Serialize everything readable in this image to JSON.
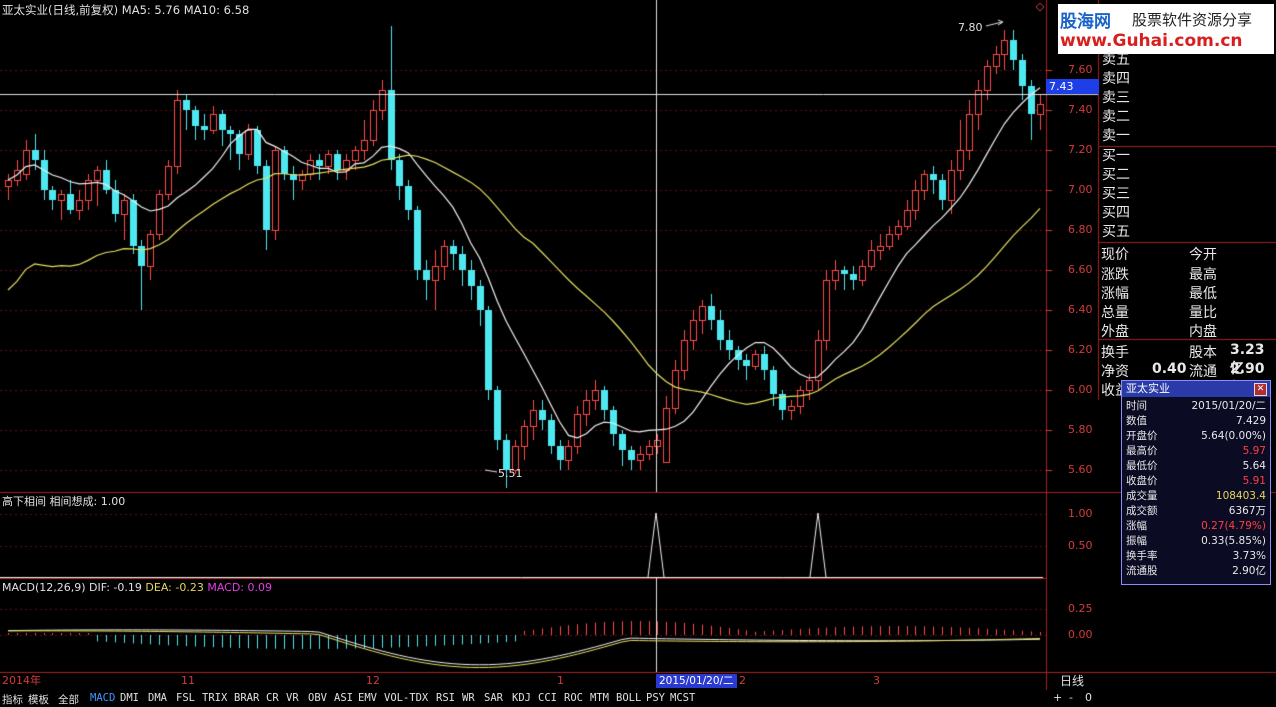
{
  "window": {
    "title": "亚太实业(日线,前复权)",
    "ma5_label": "MA5: 5.76",
    "ma10_label": "MA10: 6.58"
  },
  "brand": {
    "name": "股海网",
    "tagline": "股票软件资源分享",
    "url": "www.Guhai.com.cn"
  },
  "price_axis": {
    "labels": [
      "7.60",
      "7.40",
      "7.20",
      "7.00",
      "6.80",
      "6.60",
      "6.40",
      "6.20",
      "6.00",
      "5.80",
      "5.60"
    ],
    "current_price": "7.43"
  },
  "annotations": {
    "high": "7.80",
    "low": "5.51"
  },
  "indicator1": {
    "title": "高下相间  相间想成: 1.00",
    "axis": [
      "1.00",
      "0.50"
    ]
  },
  "macd": {
    "title": "MACD(12,26,9)",
    "dif": "DIF: -0.19",
    "dea": "DEA: -0.23",
    "macd": "MACD: 0.09",
    "axis": [
      "0.25",
      "0.00"
    ]
  },
  "time_axis": {
    "labels": [
      {
        "text": "2014年"
      },
      {
        "text": "11"
      },
      {
        "text": "12"
      },
      {
        "text": "1"
      },
      {
        "text": "2"
      },
      {
        "text": "3"
      }
    ],
    "cursor_date": "2015/01/20/二",
    "period": "日线"
  },
  "order_book": {
    "sell": [
      "卖五",
      "卖四",
      "卖三",
      "卖二",
      "卖一"
    ],
    "buy": [
      "买一",
      "买二",
      "买三",
      "买四",
      "买五"
    ]
  },
  "quote": {
    "left": [
      "现价",
      "涨跌",
      "涨幅",
      "总量",
      "外盘"
    ],
    "right": [
      "今开",
      "最高",
      "最低",
      "量比",
      "内盘"
    ],
    "turnover_label": "换手",
    "equity_label": "股本",
    "equity_value": "3.23亿",
    "net_label": "净资",
    "net_value": "0.40",
    "float_label": "流通",
    "float_value": "2.90亿",
    "income_label": "收益"
  },
  "popup": {
    "title": "亚太实业",
    "rows": [
      {
        "k": "时间",
        "v": "2015/01/20/二",
        "color": "#e8e8e8"
      },
      {
        "k": "数值",
        "v": "7.429",
        "color": "#e8e8e8"
      },
      {
        "k": "开盘价",
        "v": "5.64(0.00%)",
        "color": "#e8e8e8"
      },
      {
        "k": "最高价",
        "v": "5.97",
        "color": "#ff4040"
      },
      {
        "k": "最低价",
        "v": "5.64",
        "color": "#e8e8e8"
      },
      {
        "k": "收盘价",
        "v": "5.91",
        "color": "#ff4040"
      },
      {
        "k": "成交量",
        "v": "108403.4",
        "color": "#e6d85c"
      },
      {
        "k": "成交额",
        "v": "6367万",
        "color": "#e8e8e8"
      },
      {
        "k": "涨幅",
        "v": "0.27(4.79%)",
        "color": "#ff4040"
      },
      {
        "k": "振幅",
        "v": "0.33(5.85%)",
        "color": "#e8e8e8"
      },
      {
        "k": "换手率",
        "v": "3.73%",
        "color": "#e8e8e8"
      },
      {
        "k": "流通股",
        "v": "2.90亿",
        "color": "#e8e8e8"
      }
    ]
  },
  "tabs": [
    "指标",
    "模板",
    "全部",
    "MACD",
    "DMI",
    "DMA",
    "FSL",
    "TRIX",
    "BRAR",
    "CR",
    "VR",
    "OBV",
    "ASI",
    "EMV",
    "VOL-TDX",
    "RSI",
    "WR",
    "SAR",
    "KDJ",
    "CCI",
    "ROC",
    "MTM",
    "BOLL",
    "PSY",
    "MCST"
  ],
  "active_tab": "MACD",
  "nav_buttons": [
    "+",
    "-",
    "0"
  ],
  "chart_data": {
    "type": "candlestick",
    "ylim": [
      5.5,
      7.85
    ],
    "candles": [
      [
        7.02,
        7.05,
        6.95,
        7.08
      ],
      [
        7.05,
        7.1,
        7.02,
        7.15
      ],
      [
        7.08,
        7.2,
        7.05,
        7.25
      ],
      [
        7.2,
        7.15,
        7.1,
        7.28
      ],
      [
        7.15,
        7.0,
        6.95,
        7.2
      ],
      [
        7.0,
        6.95,
        6.9,
        7.02
      ],
      [
        6.95,
        6.98,
        6.85,
        7.0
      ],
      [
        6.98,
        6.9,
        6.88,
        7.05
      ],
      [
        6.9,
        6.95,
        6.85,
        7.0
      ],
      [
        6.95,
        7.05,
        6.9,
        7.08
      ],
      [
        7.05,
        7.1,
        6.92,
        7.12
      ],
      [
        7.1,
        7.0,
        6.98,
        7.15
      ],
      [
        7.0,
        6.88,
        6.84,
        7.05
      ],
      [
        6.88,
        6.95,
        6.75,
        6.98
      ],
      [
        6.95,
        6.72,
        6.68,
        6.98
      ],
      [
        6.72,
        6.62,
        6.4,
        6.75
      ],
      [
        6.62,
        6.78,
        6.55,
        6.8
      ],
      [
        6.78,
        6.98,
        6.75,
        7.0
      ],
      [
        6.98,
        7.12,
        6.95,
        7.15
      ],
      [
        7.12,
        7.45,
        7.08,
        7.5
      ],
      [
        7.45,
        7.4,
        7.3,
        7.48
      ],
      [
        7.4,
        7.32,
        7.25,
        7.42
      ],
      [
        7.32,
        7.3,
        7.25,
        7.38
      ],
      [
        7.3,
        7.38,
        7.28,
        7.42
      ],
      [
        7.38,
        7.3,
        7.22,
        7.4
      ],
      [
        7.3,
        7.28,
        7.15,
        7.32
      ],
      [
        7.28,
        7.18,
        7.1,
        7.3
      ],
      [
        7.18,
        7.3,
        7.15,
        7.33
      ],
      [
        7.3,
        7.12,
        7.08,
        7.32
      ],
      [
        7.12,
        6.8,
        6.7,
        7.15
      ],
      [
        6.8,
        7.2,
        6.75,
        7.22
      ],
      [
        7.2,
        7.08,
        7.05,
        7.22
      ],
      [
        7.08,
        7.05,
        6.95,
        7.12
      ],
      [
        7.05,
        7.08,
        7.0,
        7.1
      ],
      [
        7.08,
        7.15,
        7.05,
        7.18
      ],
      [
        7.15,
        7.12,
        7.05,
        7.18
      ],
      [
        7.12,
        7.18,
        7.08,
        7.2
      ],
      [
        7.18,
        7.1,
        7.05,
        7.2
      ],
      [
        7.1,
        7.15,
        7.05,
        7.18
      ],
      [
        7.15,
        7.2,
        7.1,
        7.22
      ],
      [
        7.2,
        7.25,
        7.15,
        7.35
      ],
      [
        7.25,
        7.4,
        7.22,
        7.45
      ],
      [
        7.4,
        7.5,
        7.35,
        7.55
      ],
      [
        7.5,
        7.15,
        7.1,
        7.82
      ],
      [
        7.15,
        7.02,
        6.95,
        7.18
      ],
      [
        7.02,
        6.9,
        6.85,
        7.05
      ],
      [
        6.9,
        6.6,
        6.55,
        6.92
      ],
      [
        6.6,
        6.55,
        6.45,
        6.65
      ],
      [
        6.55,
        6.62,
        6.4,
        6.7
      ],
      [
        6.62,
        6.72,
        6.55,
        6.75
      ],
      [
        6.72,
        6.68,
        6.6,
        6.75
      ],
      [
        6.68,
        6.6,
        6.52,
        6.72
      ],
      [
        6.6,
        6.52,
        6.45,
        6.65
      ],
      [
        6.52,
        6.4,
        6.32,
        6.55
      ],
      [
        6.4,
        6.0,
        5.95,
        6.42
      ],
      [
        6.0,
        5.75,
        5.7,
        6.02
      ],
      [
        5.75,
        5.6,
        5.51,
        5.78
      ],
      [
        5.6,
        5.72,
        5.58,
        5.75
      ],
      [
        5.72,
        5.82,
        5.65,
        5.85
      ],
      [
        5.82,
        5.9,
        5.75,
        5.95
      ],
      [
        5.9,
        5.85,
        5.8,
        5.95
      ],
      [
        5.85,
        5.72,
        5.68,
        5.88
      ],
      [
        5.72,
        5.65,
        5.6,
        5.75
      ],
      [
        5.65,
        5.72,
        5.6,
        5.75
      ],
      [
        5.72,
        5.88,
        5.68,
        5.92
      ],
      [
        5.88,
        5.95,
        5.82,
        6.0
      ],
      [
        5.95,
        6.0,
        5.9,
        6.05
      ],
      [
        6.0,
        5.9,
        5.85,
        6.02
      ],
      [
        5.9,
        5.78,
        5.72,
        5.92
      ],
      [
        5.78,
        5.7,
        5.62,
        5.8
      ],
      [
        5.7,
        5.65,
        5.6,
        5.72
      ],
      [
        5.65,
        5.68,
        5.6,
        5.72
      ],
      [
        5.68,
        5.72,
        5.65,
        5.75
      ],
      [
        5.72,
        5.75,
        5.68,
        5.78
      ],
      [
        5.64,
        5.91,
        5.64,
        5.97
      ],
      [
        5.91,
        6.1,
        5.88,
        6.15
      ],
      [
        6.1,
        6.25,
        6.05,
        6.3
      ],
      [
        6.25,
        6.35,
        6.2,
        6.4
      ],
      [
        6.35,
        6.42,
        6.28,
        6.45
      ],
      [
        6.42,
        6.35,
        6.3,
        6.48
      ],
      [
        6.35,
        6.25,
        6.2,
        6.4
      ],
      [
        6.25,
        6.2,
        6.15,
        6.3
      ],
      [
        6.2,
        6.15,
        6.1,
        6.22
      ],
      [
        6.15,
        6.12,
        6.05,
        6.18
      ],
      [
        6.12,
        6.18,
        6.1,
        6.2
      ],
      [
        6.18,
        6.1,
        6.05,
        6.22
      ],
      [
        6.1,
        5.98,
        5.92,
        6.12
      ],
      [
        5.98,
        5.9,
        5.85,
        6.0
      ],
      [
        5.9,
        5.92,
        5.85,
        5.95
      ],
      [
        5.92,
        6.0,
        5.88,
        6.02
      ],
      [
        6.0,
        6.05,
        5.95,
        6.08
      ],
      [
        6.05,
        6.25,
        6.0,
        6.3
      ],
      [
        6.25,
        6.55,
        6.2,
        6.6
      ],
      [
        6.55,
        6.6,
        6.5,
        6.65
      ],
      [
        6.6,
        6.58,
        6.5,
        6.62
      ],
      [
        6.58,
        6.55,
        6.5,
        6.62
      ],
      [
        6.55,
        6.62,
        6.52,
        6.65
      ],
      [
        6.62,
        6.7,
        6.6,
        6.75
      ],
      [
        6.7,
        6.72,
        6.65,
        6.78
      ],
      [
        6.72,
        6.78,
        6.7,
        6.82
      ],
      [
        6.78,
        6.82,
        6.75,
        6.85
      ],
      [
        6.82,
        6.9,
        6.8,
        6.95
      ],
      [
        6.9,
        7.0,
        6.85,
        7.05
      ],
      [
        7.0,
        7.08,
        6.95,
        7.1
      ],
      [
        7.08,
        7.05,
        6.98,
        7.12
      ],
      [
        7.05,
        6.95,
        6.9,
        7.08
      ],
      [
        6.95,
        7.1,
        6.88,
        7.15
      ],
      [
        7.1,
        7.2,
        7.05,
        7.35
      ],
      [
        7.2,
        7.38,
        7.15,
        7.45
      ],
      [
        7.38,
        7.5,
        7.3,
        7.55
      ],
      [
        7.5,
        7.62,
        7.45,
        7.65
      ],
      [
        7.62,
        7.68,
        7.58,
        7.72
      ],
      [
        7.68,
        7.75,
        7.6,
        7.8
      ],
      [
        7.75,
        7.65,
        7.6,
        7.8
      ],
      [
        7.65,
        7.52,
        7.45,
        7.68
      ],
      [
        7.52,
        7.38,
        7.25,
        7.55
      ],
      [
        7.38,
        7.43,
        7.3,
        7.48
      ]
    ]
  }
}
